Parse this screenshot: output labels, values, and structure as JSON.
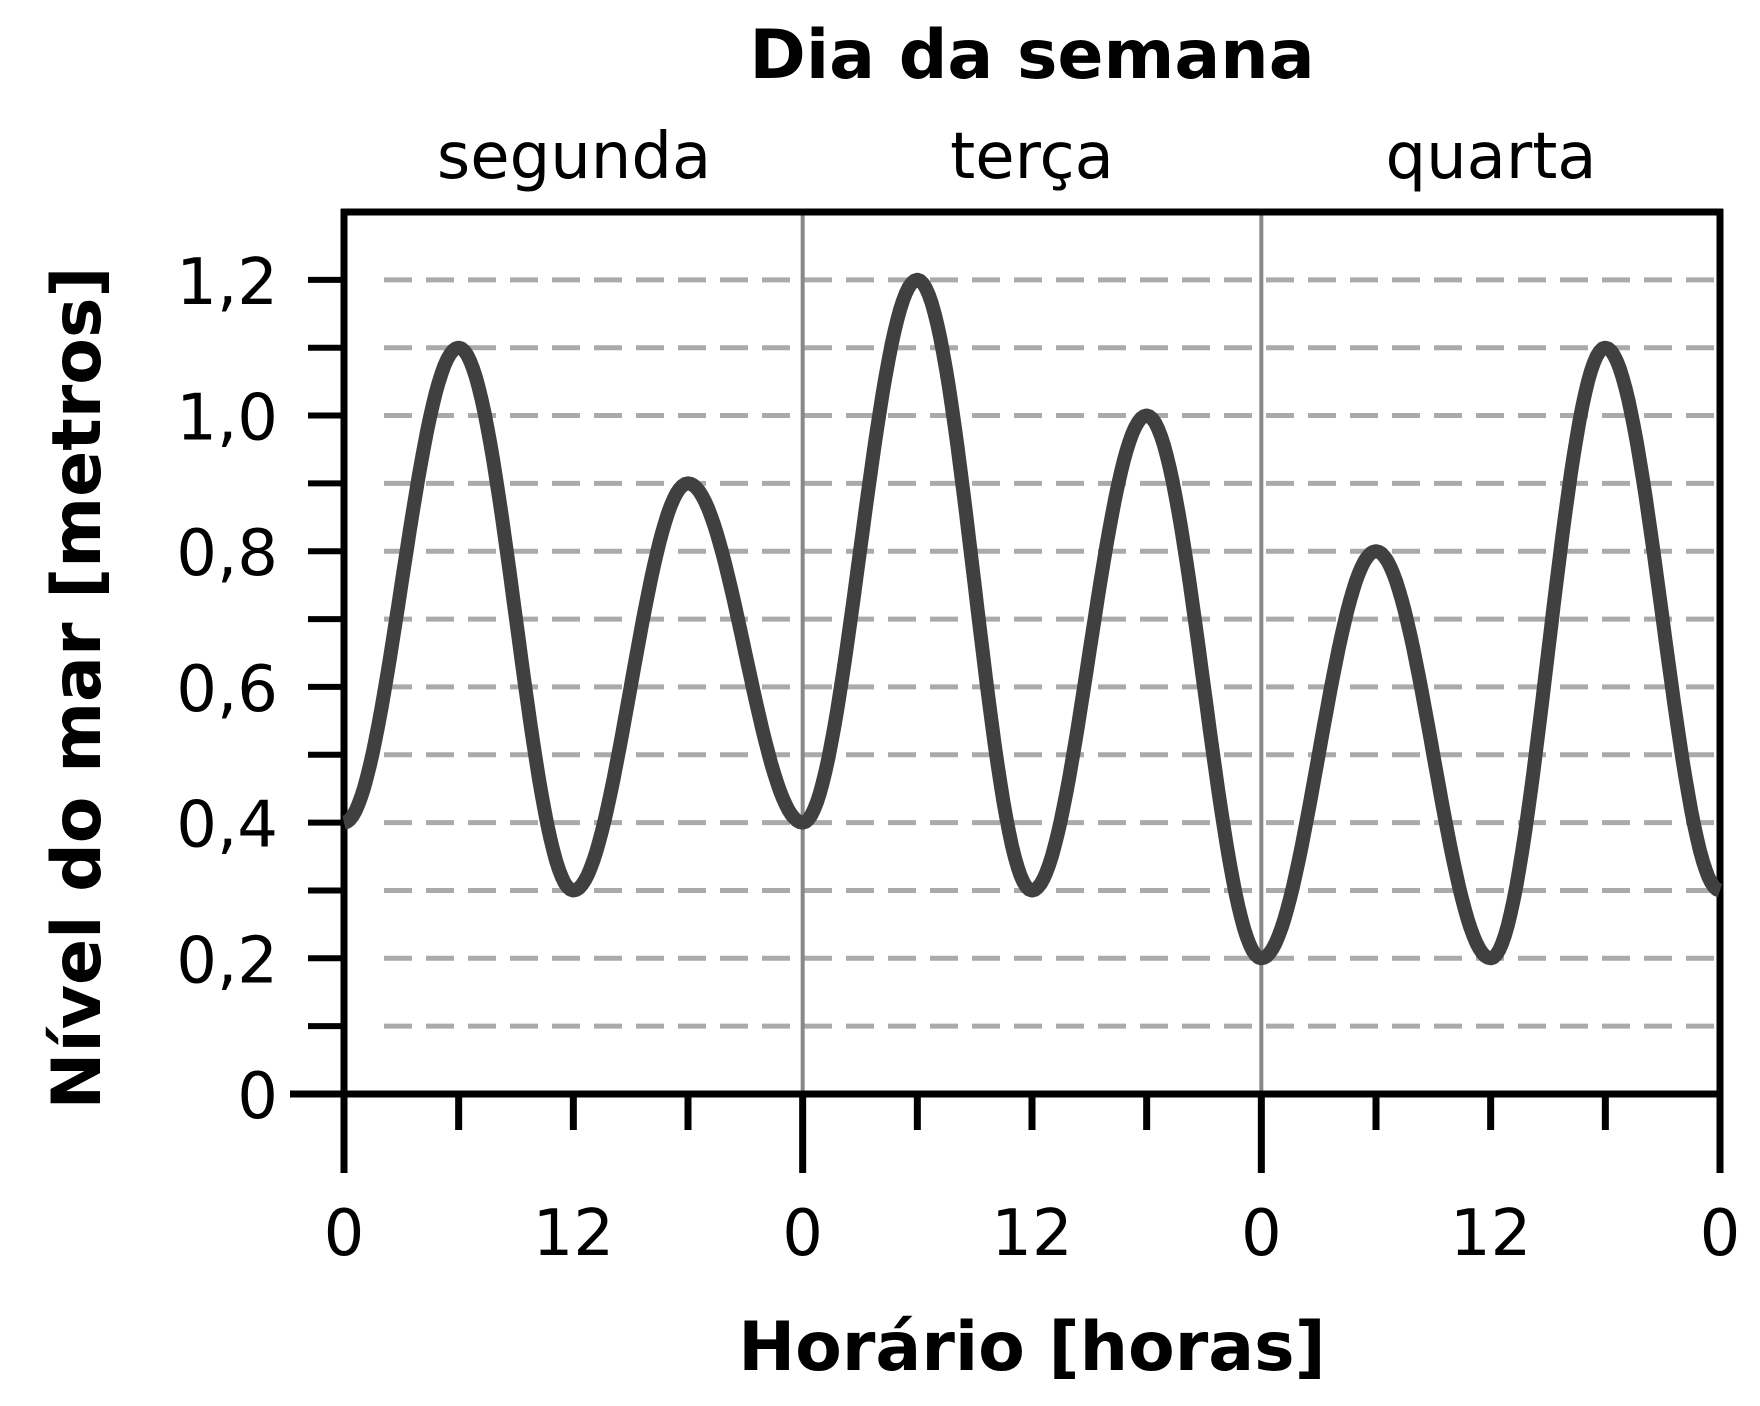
{
  "chart_data": {
    "type": "line",
    "top_title": "Dia da semana",
    "day_labels": [
      "segunda",
      "terça",
      "quarta"
    ],
    "xlabel": "Horário [horas]",
    "ylabel": "Nível do mar [metros]",
    "xlim": [
      0,
      72
    ],
    "ylim": [
      0,
      1.3
    ],
    "x_tick_labels": [
      {
        "x": 0,
        "label": "0"
      },
      {
        "x": 12,
        "label": "12"
      },
      {
        "x": 24,
        "label": "0"
      },
      {
        "x": 36,
        "label": "12"
      },
      {
        "x": 48,
        "label": "0"
      },
      {
        "x": 60,
        "label": "12"
      },
      {
        "x": 72,
        "label": "0"
      }
    ],
    "y_tick_labels": [
      {
        "y": 0,
        "label": "0"
      },
      {
        "y": 0.2,
        "label": "0,2"
      },
      {
        "y": 0.4,
        "label": "0,4"
      },
      {
        "y": 0.6,
        "label": "0,6"
      },
      {
        "y": 0.8,
        "label": "0,8"
      },
      {
        "y": 1.0,
        "label": "1,0"
      },
      {
        "y": 1.2,
        "label": "1,2"
      }
    ],
    "grid": "horizontal dashed every 0.1",
    "day_separators": [
      24,
      48
    ],
    "series": [
      {
        "x": [
          0,
          6,
          12,
          18,
          24,
          30,
          36,
          42,
          48,
          54,
          60,
          66,
          72
        ],
        "y": [
          0.4,
          1.1,
          0.3,
          0.9,
          0.4,
          1.2,
          0.3,
          1.0,
          0.2,
          0.8,
          0.2,
          1.1,
          0.3
        ],
        "color": "#404040"
      }
    ]
  }
}
